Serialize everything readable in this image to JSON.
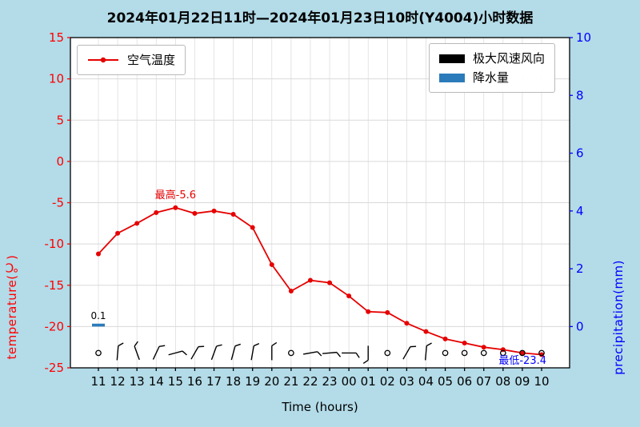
{
  "title": "2024年01月22日11时—2024年01月23日10时(Y4004)小时数据",
  "axes": {
    "left_label": "temperature(℃)",
    "right_label": "precipitation(mm)",
    "x_label": "Time (hours)"
  },
  "legend_temp": {
    "label": "空气温度"
  },
  "legend_right": {
    "wind_label": "极大风速风向",
    "precip_label": "降水量"
  },
  "annotations": {
    "max_label": "最高-5.6",
    "min_label": "最低-23.4",
    "precip_label": "0.1"
  },
  "colors": {
    "background": "#b3dbe8",
    "plot_bg": "#ffffff",
    "grid": "#d9d9d9",
    "temp_line": "#e60000",
    "left_axis": "#ff0000",
    "right_axis": "#0000ff",
    "precip_bar": "#2b7bba",
    "wind": "#000000",
    "spine": "#000000"
  },
  "chart_data": {
    "type": "line",
    "title": "2024年01月22日11时—2024年01月23日10时(Y4004)小时数据",
    "xlabel": "Time (hours)",
    "ylabel_left": "temperature(℃)",
    "ylabel_right": "precipitation(mm)",
    "x_categories": [
      "11",
      "12",
      "13",
      "14",
      "15",
      "16",
      "17",
      "18",
      "19",
      "20",
      "21",
      "22",
      "23",
      "00",
      "01",
      "02",
      "03",
      "04",
      "05",
      "06",
      "07",
      "08",
      "09",
      "10"
    ],
    "series": [
      {
        "name": "空气温度",
        "values": [
          -11.2,
          -8.7,
          -7.5,
          -6.2,
          -5.6,
          -6.3,
          -6.0,
          -6.4,
          -8.0,
          -12.5,
          -15.7,
          -14.4,
          -14.7,
          -16.3,
          -18.2,
          -18.3,
          -19.6,
          -20.6,
          -21.5,
          -22.0,
          -22.5,
          -22.8,
          -23.2,
          -23.4
        ]
      }
    ],
    "temp_axis": {
      "min": -25,
      "max": 15,
      "ticks": [
        15,
        10,
        5,
        0,
        -5,
        -10,
        -15,
        -20,
        -25
      ]
    },
    "precip_axis": {
      "min": 0,
      "max": 10,
      "ticks": [
        10,
        8,
        6,
        4,
        2,
        0
      ],
      "zero_at_temp": -20,
      "temp_per_mm": 3.5
    },
    "precip_bars": [
      {
        "x": "11",
        "value": 0.1
      }
    ],
    "max_point": {
      "x": "15",
      "value": -5.6,
      "label": "最高-5.6"
    },
    "min_point": {
      "x": "10",
      "value": -23.4,
      "label": "最低-23.4"
    },
    "wind_row_temp": -23.2,
    "winds": [
      {
        "type": "calm"
      },
      {
        "type": "barb",
        "angle": 5,
        "ticks": 1
      },
      {
        "type": "barb",
        "angle": -20,
        "ticks": 1
      },
      {
        "type": "barb",
        "angle": 25,
        "ticks": 1
      },
      {
        "type": "barb",
        "angle": 75,
        "ticks": 1
      },
      {
        "type": "barb",
        "angle": 30,
        "ticks": 1
      },
      {
        "type": "barb",
        "angle": 20,
        "ticks": 1
      },
      {
        "type": "barb",
        "angle": 15,
        "ticks": 1
      },
      {
        "type": "barb",
        "angle": 10,
        "ticks": 1
      },
      {
        "type": "barb",
        "angle": 0,
        "ticks": 1
      },
      {
        "type": "calm"
      },
      {
        "type": "barb",
        "angle": 80,
        "ticks": 1
      },
      {
        "type": "barb",
        "angle": 85,
        "ticks": 1
      },
      {
        "type": "barb",
        "angle": 90,
        "ticks": 1
      },
      {
        "type": "barb",
        "angle": 180,
        "ticks": 1
      },
      {
        "type": "calm"
      },
      {
        "type": "barb",
        "angle": 30,
        "ticks": 1
      },
      {
        "type": "barb",
        "angle": 5,
        "ticks": 1
      },
      {
        "type": "calm"
      },
      {
        "type": "calm"
      },
      {
        "type": "calm"
      },
      {
        "type": "calm"
      },
      {
        "type": "calm"
      },
      {
        "type": "calm"
      }
    ]
  }
}
